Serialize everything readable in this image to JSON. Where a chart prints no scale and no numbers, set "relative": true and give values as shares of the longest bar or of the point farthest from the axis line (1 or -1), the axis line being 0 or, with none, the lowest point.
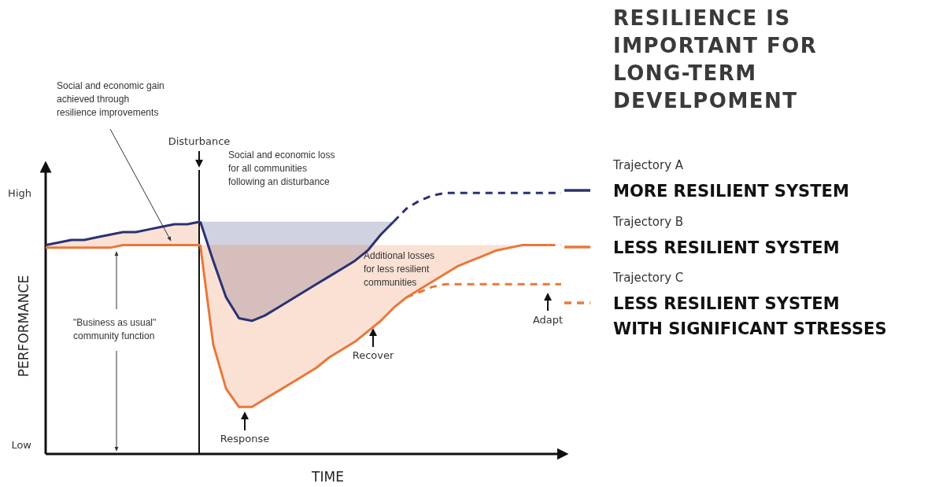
{
  "chart_data": {
    "type": "line",
    "title": "RESILIENCE IS IMPORTANT FOR LONG-TERM DEVELPOMENT",
    "xlabel": "TIME",
    "ylabel": "PERFORMANCE",
    "relative": true,
    "categories": [
      null,
      null,
      null,
      null,
      null,
      null,
      null,
      null,
      null,
      null,
      null,
      null,
      null,
      null,
      null,
      null,
      null,
      null,
      null,
      null,
      null,
      null,
      null,
      null,
      null,
      null,
      null,
      null,
      null,
      null,
      null,
      null,
      null,
      null,
      null,
      null,
      null,
      null,
      null,
      null,
      null
    ],
    "grid": false,
    "marker": "none",
    "legend": "right",
    "series": [
      {
        "color": "#2a3272",
        "line_style": "solid",
        "values": [
          0.8,
          0.81,
          0.82,
          0.82,
          0.83,
          0.84,
          0.85,
          0.85,
          0.86,
          0.87,
          0.88,
          0.88,
          0.89,
          null,
          null,
          null,
          null,
          null,
          null,
          null,
          null,
          null,
          null,
          null,
          null,
          null,
          null,
          null,
          null,
          null,
          null,
          null,
          null,
          null,
          null,
          null,
          null,
          null,
          null,
          null,
          null
        ]
      },
      {
        "name": "Trajectory A\nMORE RESILIENT SYSTEM",
        "color": "#2a3272",
        "line_style": "solid",
        "values": [
          null,
          null,
          null,
          null,
          null,
          null,
          null,
          null,
          null,
          null,
          null,
          null,
          0.89,
          0.74,
          0.6,
          0.52,
          0.51,
          0.53,
          0.56,
          0.59,
          0.62,
          0.65,
          0.68,
          0.71,
          0.74,
          0.78,
          0.84,
          0.89,
          null,
          null,
          null,
          null,
          null,
          null,
          null,
          null,
          null,
          null,
          null,
          null,
          null
        ],
        "upper": [
          null,
          null,
          null,
          null,
          null,
          null,
          null,
          null,
          null,
          null,
          null,
          null,
          0.89,
          0.89,
          0.89,
          0.89,
          0.89,
          0.89,
          0.89,
          0.89,
          0.89,
          0.89,
          0.89,
          0.89,
          0.89,
          0.89,
          0.89,
          0.89,
          null,
          null,
          null,
          null,
          null,
          null,
          null,
          null,
          null,
          null,
          null,
          null,
          null
        ],
        "lower": [
          null,
          null,
          null,
          null,
          null,
          null,
          null,
          null,
          null,
          null,
          null,
          null,
          0.89,
          0.74,
          0.6,
          0.52,
          0.51,
          0.53,
          0.56,
          0.59,
          0.62,
          0.65,
          0.68,
          0.71,
          0.74,
          0.78,
          0.84,
          0.89,
          null,
          null,
          null,
          null,
          null,
          null,
          null,
          null,
          null,
          null,
          null,
          null,
          null
        ]
      },
      {
        "color": "#2a3272",
        "line_style": "dashed",
        "values": [
          null,
          null,
          null,
          null,
          null,
          null,
          null,
          null,
          null,
          null,
          null,
          null,
          null,
          null,
          null,
          null,
          null,
          null,
          null,
          null,
          null,
          null,
          null,
          null,
          null,
          null,
          null,
          0.89,
          0.94,
          0.97,
          0.99,
          1.0,
          1.0,
          1.0,
          1.0,
          1.0,
          1.0,
          1.0,
          1.0,
          1.0,
          1.0
        ]
      },
      {
        "color": "#e8783a",
        "line_style": "solid",
        "values": [
          0.79,
          0.79,
          0.79,
          0.79,
          0.79,
          0.79,
          0.8,
          0.8,
          0.8,
          0.8,
          0.8,
          0.8,
          0.8,
          null,
          null,
          null,
          null,
          null,
          null,
          null,
          null,
          null,
          null,
          null,
          null,
          null,
          null,
          null,
          null,
          null,
          null,
          null,
          null,
          null,
          null,
          null,
          null,
          null,
          null,
          null,
          null
        ],
        "upper": [
          0.8,
          0.81,
          0.82,
          0.82,
          0.83,
          0.84,
          0.85,
          0.85,
          0.86,
          0.87,
          0.88,
          0.88,
          0.89,
          null,
          null,
          null,
          null,
          null,
          null,
          null,
          null,
          null,
          null,
          null,
          null,
          null,
          null,
          null,
          null,
          null,
          null,
          null,
          null,
          null,
          null,
          null,
          null,
          null,
          null,
          null,
          null
        ],
        "lower": [
          0.79,
          0.79,
          0.79,
          0.79,
          0.79,
          0.79,
          0.8,
          0.8,
          0.8,
          0.8,
          0.8,
          0.8,
          0.8,
          null,
          null,
          null,
          null,
          null,
          null,
          null,
          null,
          null,
          null,
          null,
          null,
          null,
          null,
          null,
          null,
          null,
          null,
          null,
          null,
          null,
          null,
          null,
          null,
          null,
          null,
          null,
          null
        ]
      },
      {
        "name": "Trajectory B\nLESS RESILIENT SYSTEM",
        "color": "#e8783a",
        "line_style": "solid",
        "values": [
          null,
          null,
          null,
          null,
          null,
          null,
          null,
          null,
          null,
          null,
          null,
          null,
          0.8,
          0.42,
          0.25,
          0.18,
          0.18,
          0.21,
          0.24,
          0.27,
          0.3,
          0.33,
          0.37,
          0.4,
          0.43,
          0.47,
          0.51,
          0.56,
          0.6,
          0.63,
          0.66,
          0.69,
          0.72,
          0.74,
          0.76,
          0.78,
          0.79,
          0.8,
          0.8,
          0.8,
          null
        ],
        "upper": [
          null,
          null,
          null,
          null,
          null,
          null,
          null,
          null,
          null,
          null,
          null,
          null,
          0.8,
          0.8,
          0.8,
          0.8,
          0.8,
          0.8,
          0.8,
          0.8,
          0.8,
          0.8,
          0.8,
          0.8,
          0.8,
          0.8,
          0.8,
          0.8,
          0.8,
          0.8,
          0.8,
          0.8,
          0.8,
          0.8,
          0.8,
          0.8,
          0.8,
          0.8,
          0.8,
          0.8,
          null
        ],
        "lower": [
          null,
          null,
          null,
          null,
          null,
          null,
          null,
          null,
          null,
          null,
          null,
          null,
          0.8,
          0.42,
          0.25,
          0.18,
          0.18,
          0.21,
          0.24,
          0.27,
          0.3,
          0.33,
          0.37,
          0.4,
          0.43,
          0.47,
          0.51,
          0.56,
          0.6,
          0.63,
          0.66,
          0.69,
          0.72,
          0.74,
          0.76,
          0.78,
          0.79,
          0.8,
          0.8,
          0.8,
          null
        ]
      },
      {
        "color": "#e8783a",
        "line_style": "dashed",
        "values": [
          null,
          null,
          null,
          null,
          null,
          null,
          null,
          null,
          null,
          null,
          null,
          null,
          null,
          null,
          null,
          null,
          null,
          null,
          null,
          null,
          null,
          null,
          null,
          null,
          null,
          null,
          null,
          null,
          null,
          null,
          null,
          null,
          null,
          null,
          null,
          null,
          null,
          null,
          null,
          0.8,
          0.8
        ]
      },
      {
        "name": "Trajectory C\nLESS RESILIENT SYSTEM\nWITH SIGNIFICANT STRESSES",
        "color": "#e8783a",
        "line_style": "dashed",
        "values": [
          null,
          null,
          null,
          null,
          null,
          null,
          null,
          null,
          null,
          null,
          null,
          null,
          null,
          null,
          null,
          null,
          null,
          null,
          null,
          null,
          null,
          null,
          null,
          null,
          null,
          null,
          null,
          null,
          0.6,
          0.62,
          0.64,
          0.65,
          0.65,
          0.65,
          0.65,
          0.65,
          0.65,
          0.65,
          0.65,
          0.65,
          0.65
        ]
      }
    ],
    "annotations": [
      "Social and economic gain\nachieved through\nresilience improvements",
      "Social and economic loss\nfor all communities\nfollowing an disturbance",
      "Additional losses\nfor less resilient\ncommunities",
      "\"Business as usual\"\ncommunity function",
      "Response",
      "Recover",
      "Adapt",
      "High",
      "Low",
      "Disturbance"
    ]
  }
}
